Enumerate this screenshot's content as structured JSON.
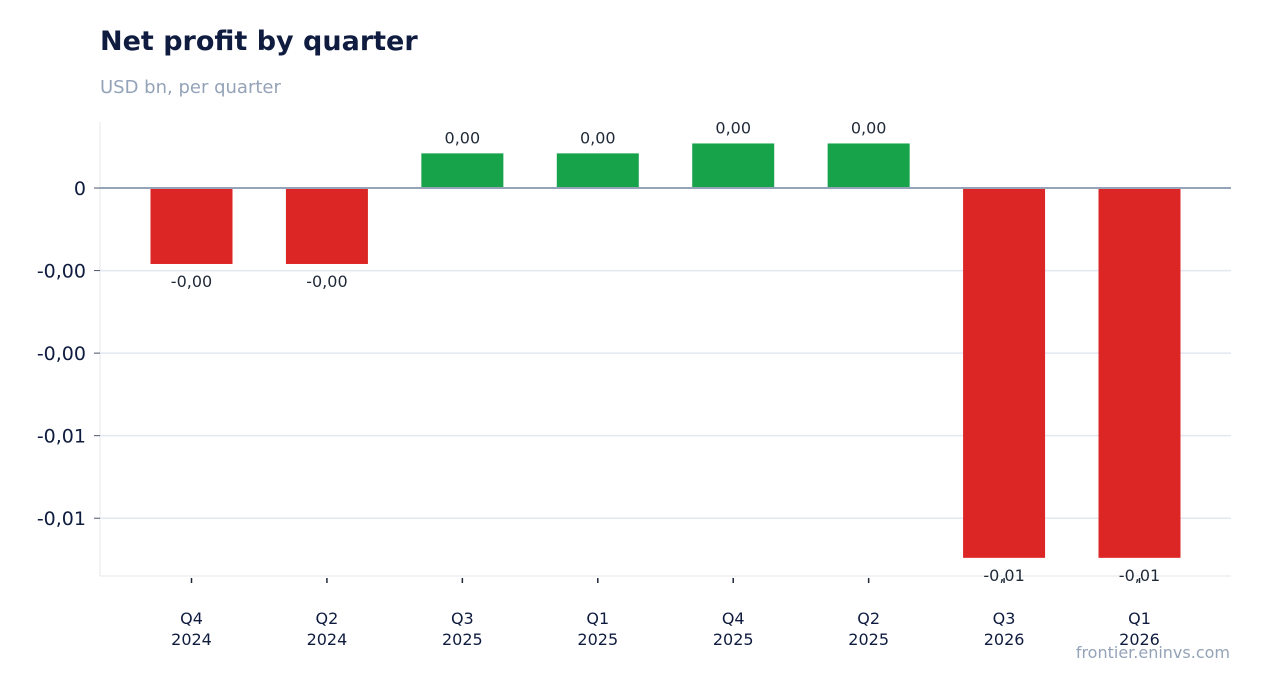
{
  "title": "Net profit by quarter",
  "subtitle": "USD bn, per quarter",
  "source": "frontier.eninvs.com",
  "colors": {
    "positive": "#16a34a",
    "negative": "#dc2626",
    "zero_line": "#94a3b8",
    "grid": "#e2e8f0"
  },
  "chart_data": {
    "type": "bar",
    "title": "Net profit by quarter",
    "subtitle": "USD bn, per quarter",
    "xlabel": "",
    "ylabel": "",
    "categories": [
      [
        "Q4",
        "2024"
      ],
      [
        "Q2",
        "2024"
      ],
      [
        "Q3",
        "2025"
      ],
      [
        "Q1",
        "2025"
      ],
      [
        "Q4",
        "2025"
      ],
      [
        "Q2",
        "2025"
      ],
      [
        "Q3",
        "2026"
      ],
      [
        "Q1",
        "2026"
      ]
    ],
    "values": [
      -0.0023,
      -0.0023,
      0.00105,
      0.00105,
      0.00135,
      0.00135,
      -0.0112,
      -0.0112
    ],
    "data_labels": [
      "-0,00",
      "-0,00",
      "0,00",
      "0,00",
      "0,00",
      "0,00",
      "-0,01",
      "-0,01"
    ],
    "yticks": [
      {
        "value": 0,
        "label": "0"
      },
      {
        "value": -0.0025,
        "label": "-0,00"
      },
      {
        "value": -0.005,
        "label": "-0,00"
      },
      {
        "value": -0.0075,
        "label": "-0,01"
      },
      {
        "value": -0.01,
        "label": "-0,01"
      }
    ],
    "ylim": [
      -0.01175,
      0.002
    ],
    "grid": true,
    "legend": "none"
  }
}
